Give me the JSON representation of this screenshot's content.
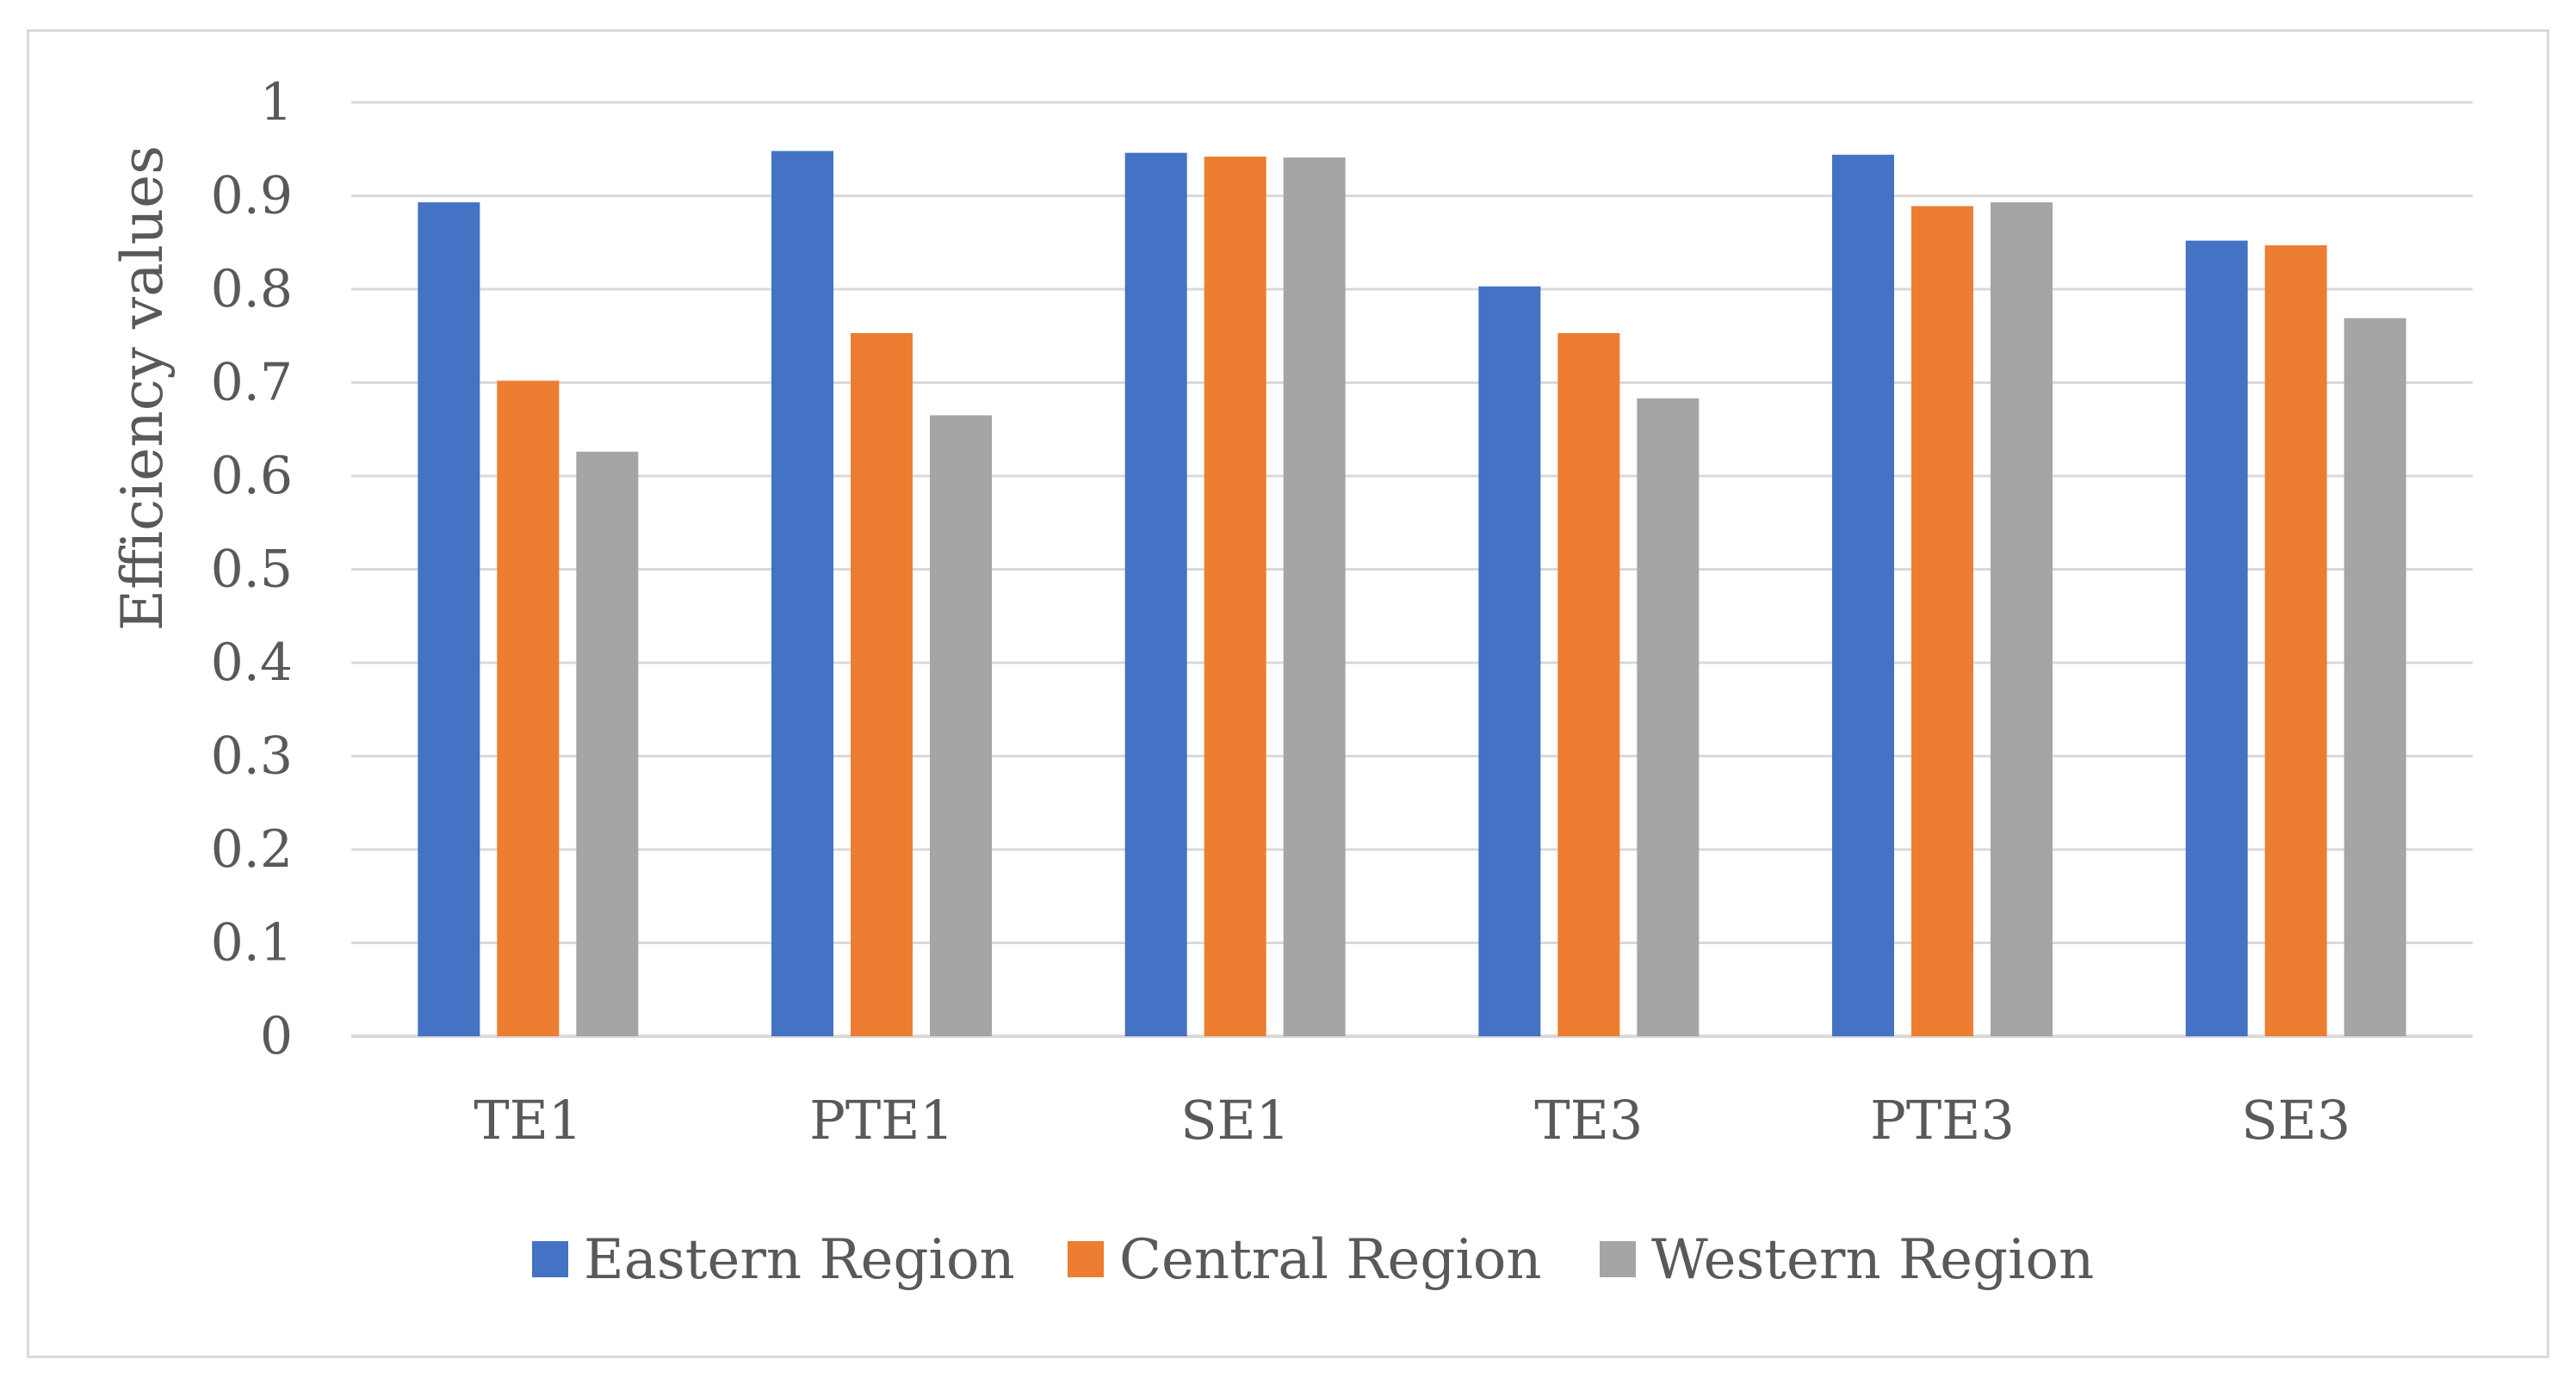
{
  "chart_data": {
    "type": "bar",
    "title": "",
    "xlabel": "",
    "ylabel": "Efficiency values",
    "ylim": [
      0,
      1
    ],
    "yticks": [
      "0",
      "0.1",
      "0.2",
      "0.3",
      "0.4",
      "0.5",
      "0.6",
      "0.7",
      "0.8",
      "0.9",
      "1"
    ],
    "grid": true,
    "legend_position": "bottom",
    "categories": [
      "TE1",
      "PTE1",
      "SE1",
      "TE3",
      "PTE3",
      "SE3"
    ],
    "series": [
      {
        "name": "Eastern Region",
        "color": "#4472c4",
        "values": [
          0.893,
          0.948,
          0.946,
          0.803,
          0.944,
          0.852
        ]
      },
      {
        "name": "Central Region",
        "color": "#ed7d31",
        "values": [
          0.702,
          0.753,
          0.942,
          0.753,
          0.889,
          0.847
        ]
      },
      {
        "name": "Western Region",
        "color": "#a5a5a5",
        "values": [
          0.626,
          0.665,
          0.941,
          0.683,
          0.893,
          0.769
        ]
      }
    ]
  }
}
